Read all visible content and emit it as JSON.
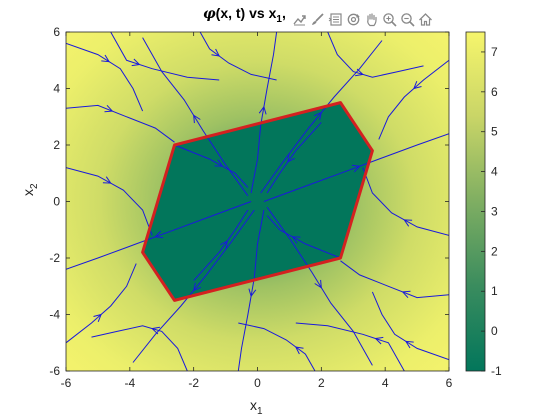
{
  "title": {
    "symbol": "φ",
    "text": "(x, t) vs x",
    "sub": "1",
    "trail": ","
  },
  "axes": {
    "xlabel": "x",
    "xlabel_sub": "1",
    "ylabel": "x",
    "ylabel_sub": "2"
  },
  "toolbar": {
    "icons": [
      "export-icon",
      "brush-icon",
      "data-tips-icon",
      "rotate-icon",
      "pan-icon",
      "zoom-in-icon",
      "zoom-out-icon",
      "home-icon"
    ]
  },
  "chart_data": {
    "type": "heatmap",
    "subtype": "heatmap-with-streamlines",
    "title": "φ(x, t) vs x1,",
    "xlabel": "x1",
    "ylabel": "x2",
    "xlim": [
      -6,
      6
    ],
    "ylim": [
      -6,
      6
    ],
    "xticks": [
      -6,
      -4,
      -2,
      0,
      2,
      4,
      6
    ],
    "yticks": [
      -6,
      -4,
      -2,
      0,
      2,
      4,
      6
    ],
    "colorbar": {
      "lim": [
        -1,
        7.5
      ],
      "ticks": [
        -1,
        0,
        1,
        2,
        3,
        4,
        5,
        6,
        7
      ],
      "colormap": [
        "#02765b",
        "#3a8c5e",
        "#7fae62",
        "#c9d567",
        "#f6f56c"
      ]
    },
    "zero_level_set": {
      "color": "#d42020",
      "vertices": [
        [
          -2.6,
          2.0
        ],
        [
          2.6,
          3.5
        ],
        [
          3.6,
          1.8
        ],
        [
          2.6,
          -2.0
        ],
        [
          -2.6,
          -3.5
        ],
        [
          -3.6,
          -1.8
        ]
      ]
    },
    "streamline_color": "#1a1adb",
    "streamlines": [
      [
        [
          -0.3,
          0.2
        ],
        [
          -1.0,
          1.3
        ],
        [
          -1.7,
          2.5
        ],
        [
          -2.3,
          3.6
        ],
        [
          -3.0,
          4.6
        ],
        [
          -3.6,
          5.8
        ]
      ],
      [
        [
          -0.2,
          0.3
        ],
        [
          0.0,
          1.5
        ],
        [
          0.1,
          2.7
        ],
        [
          0.3,
          4.0
        ],
        [
          0.5,
          5.2
        ],
        [
          0.6,
          6.0
        ]
      ],
      [
        [
          0.1,
          0.3
        ],
        [
          0.8,
          1.4
        ],
        [
          1.6,
          2.6
        ],
        [
          2.4,
          3.7
        ],
        [
          3.2,
          4.7
        ],
        [
          3.9,
          5.7
        ]
      ],
      [
        [
          0.2,
          0.0
        ],
        [
          1.4,
          0.5
        ],
        [
          2.6,
          1.0
        ],
        [
          3.8,
          1.5
        ],
        [
          5.0,
          2.0
        ],
        [
          6.0,
          2.4
        ]
      ],
      [
        [
          0.3,
          -0.2
        ],
        [
          1.0,
          -1.3
        ],
        [
          1.7,
          -2.5
        ],
        [
          2.3,
          -3.6
        ],
        [
          3.0,
          -4.6
        ],
        [
          3.6,
          -5.8
        ]
      ],
      [
        [
          0.2,
          -0.3
        ],
        [
          0.0,
          -1.5
        ],
        [
          -0.1,
          -2.7
        ],
        [
          -0.3,
          -4.0
        ],
        [
          -0.5,
          -5.2
        ],
        [
          -0.6,
          -6.0
        ]
      ],
      [
        [
          -0.1,
          -0.3
        ],
        [
          -0.8,
          -1.4
        ],
        [
          -1.6,
          -2.6
        ],
        [
          -2.4,
          -3.7
        ],
        [
          -3.2,
          -4.7
        ],
        [
          -3.9,
          -5.7
        ]
      ],
      [
        [
          -0.2,
          0.0
        ],
        [
          -1.4,
          -0.5
        ],
        [
          -2.6,
          -1.0
        ],
        [
          -3.8,
          -1.5
        ],
        [
          -5.0,
          -2.0
        ],
        [
          -6.0,
          -2.4
        ]
      ],
      [
        [
          -6.0,
          5.6
        ],
        [
          -5.0,
          5.2
        ],
        [
          -4.3,
          4.7
        ],
        [
          -3.9,
          4.0
        ],
        [
          -3.6,
          3.2
        ]
      ],
      [
        [
          -6.0,
          3.3
        ],
        [
          -5.0,
          3.4
        ],
        [
          -4.1,
          3.0
        ],
        [
          -3.2,
          2.6
        ],
        [
          -2.6,
          2.1
        ]
      ],
      [
        [
          -6.0,
          1.2
        ],
        [
          -5.0,
          0.9
        ],
        [
          -4.2,
          0.4
        ],
        [
          -3.6,
          -0.3
        ],
        [
          -3.3,
          -1.2
        ]
      ],
      [
        [
          6.0,
          -5.6
        ],
        [
          5.0,
          -5.2
        ],
        [
          4.3,
          -4.7
        ],
        [
          3.9,
          -4.0
        ],
        [
          3.6,
          -3.2
        ]
      ],
      [
        [
          6.0,
          -3.3
        ],
        [
          5.0,
          -3.4
        ],
        [
          4.1,
          -3.0
        ],
        [
          3.2,
          -2.6
        ],
        [
          2.6,
          -2.1
        ]
      ],
      [
        [
          6.0,
          -1.2
        ],
        [
          5.0,
          -0.9
        ],
        [
          4.2,
          -0.4
        ],
        [
          3.6,
          0.3
        ],
        [
          3.3,
          1.2
        ]
      ],
      [
        [
          -4.6,
          6.0
        ],
        [
          -4.1,
          5.0
        ],
        [
          -3.3,
          4.7
        ],
        [
          -2.2,
          4.4
        ],
        [
          -1.2,
          4.3
        ]
      ],
      [
        [
          4.6,
          -6.0
        ],
        [
          4.1,
          -5.0
        ],
        [
          3.3,
          -4.7
        ],
        [
          2.2,
          -4.4
        ],
        [
          1.2,
          -4.3
        ]
      ],
      [
        [
          2.2,
          6.0
        ],
        [
          2.5,
          5.2
        ],
        [
          3.0,
          4.6
        ],
        [
          3.6,
          4.4
        ],
        [
          4.4,
          4.6
        ],
        [
          5.2,
          4.8
        ]
      ],
      [
        [
          -2.2,
          -6.0
        ],
        [
          -2.5,
          -5.2
        ],
        [
          -3.0,
          -4.6
        ],
        [
          -3.6,
          -4.4
        ],
        [
          -4.4,
          -4.6
        ],
        [
          -5.2,
          -4.8
        ]
      ],
      [
        [
          6.0,
          5.0
        ],
        [
          5.2,
          4.3
        ],
        [
          4.6,
          3.7
        ],
        [
          4.1,
          3.0
        ],
        [
          3.8,
          2.2
        ]
      ],
      [
        [
          -6.0,
          -5.0
        ],
        [
          -5.2,
          -4.3
        ],
        [
          -4.6,
          -3.7
        ],
        [
          -4.1,
          -3.0
        ],
        [
          -3.8,
          -2.2
        ]
      ],
      [
        [
          -1.8,
          6.0
        ],
        [
          -1.5,
          5.4
        ],
        [
          -0.9,
          4.9
        ],
        [
          -0.2,
          4.5
        ],
        [
          0.6,
          4.3
        ]
      ],
      [
        [
          1.8,
          -6.0
        ],
        [
          1.5,
          -5.4
        ],
        [
          0.9,
          -4.9
        ],
        [
          0.2,
          -4.5
        ],
        [
          -0.6,
          -4.3
        ]
      ],
      [
        [
          -2.6,
          2.0
        ],
        [
          -1.5,
          1.5
        ],
        [
          -0.7,
          1.0
        ],
        [
          -0.3,
          0.5
        ]
      ],
      [
        [
          2.6,
          -2.0
        ],
        [
          1.5,
          -1.5
        ],
        [
          0.7,
          -1.0
        ],
        [
          0.3,
          -0.5
        ]
      ],
      [
        [
          -2.0,
          -2.8
        ],
        [
          -1.2,
          -1.8
        ],
        [
          -0.7,
          -1.0
        ],
        [
          -0.3,
          -0.3
        ]
      ],
      [
        [
          2.0,
          2.8
        ],
        [
          1.2,
          1.8
        ],
        [
          0.7,
          1.0
        ],
        [
          0.3,
          0.3
        ]
      ]
    ]
  }
}
